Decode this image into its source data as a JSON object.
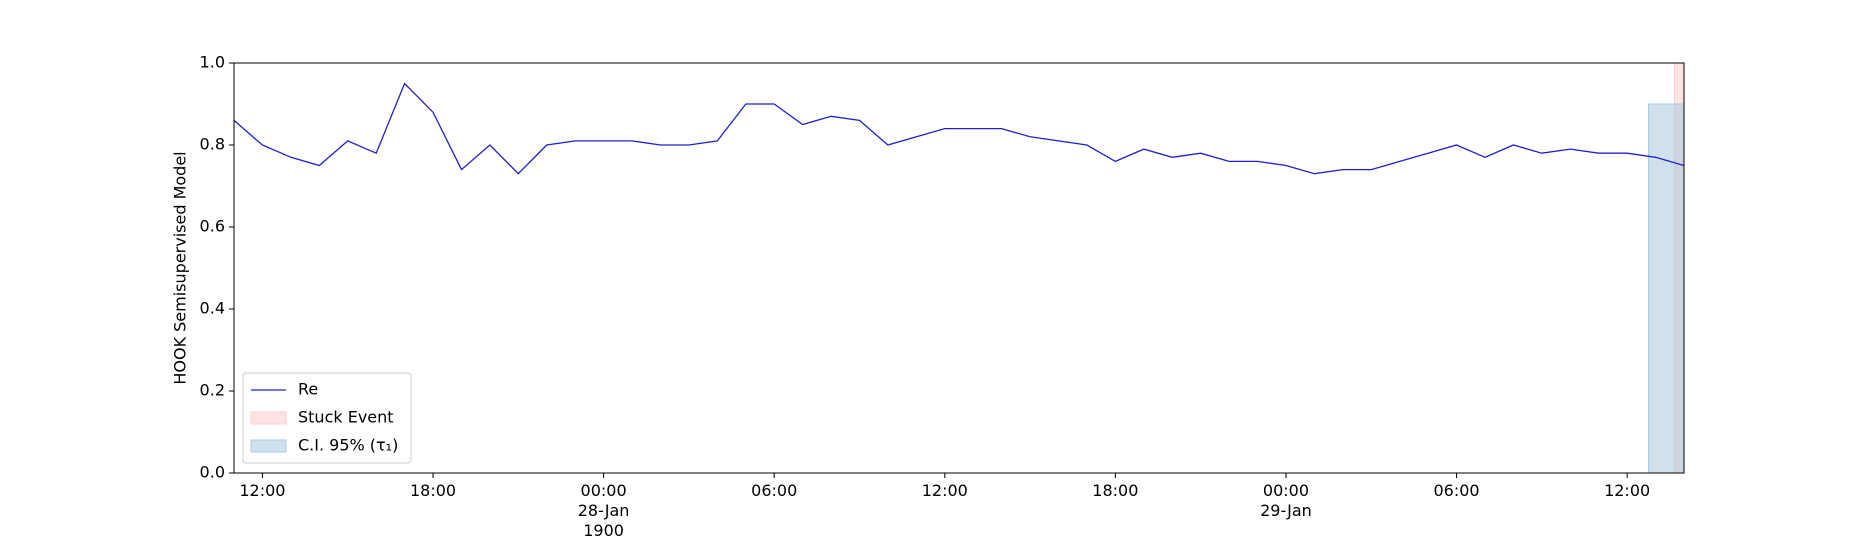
{
  "chart_data": {
    "type": "line",
    "ylabel": "HOOK Semisupervised Model",
    "x": [
      "1900-01-27T11:00",
      "1900-01-27T12:00",
      "1900-01-27T13:00",
      "1900-01-27T14:00",
      "1900-01-27T15:00",
      "1900-01-27T16:00",
      "1900-01-27T17:00",
      "1900-01-27T18:00",
      "1900-01-27T19:00",
      "1900-01-27T20:00",
      "1900-01-27T21:00",
      "1900-01-27T22:00",
      "1900-01-27T23:00",
      "1900-01-28T00:00",
      "1900-01-28T01:00",
      "1900-01-28T02:00",
      "1900-01-28T03:00",
      "1900-01-28T04:00",
      "1900-01-28T05:00",
      "1900-01-28T06:00",
      "1900-01-28T07:00",
      "1900-01-28T08:00",
      "1900-01-28T09:00",
      "1900-01-28T10:00",
      "1900-01-28T11:00",
      "1900-01-28T12:00",
      "1900-01-28T13:00",
      "1900-01-28T14:00",
      "1900-01-28T15:00",
      "1900-01-28T16:00",
      "1900-01-28T17:00",
      "1900-01-28T18:00",
      "1900-01-28T19:00",
      "1900-01-28T20:00",
      "1900-01-28T21:00",
      "1900-01-28T22:00",
      "1900-01-28T23:00",
      "1900-01-29T00:00",
      "1900-01-29T01:00",
      "1900-01-29T02:00",
      "1900-01-29T03:00",
      "1900-01-29T04:00",
      "1900-01-29T05:00",
      "1900-01-29T06:00",
      "1900-01-29T07:00",
      "1900-01-29T08:00",
      "1900-01-29T09:00",
      "1900-01-29T10:00",
      "1900-01-29T11:00",
      "1900-01-29T12:00",
      "1900-01-29T13:00",
      "1900-01-29T14:00"
    ],
    "series": [
      {
        "name": "Re",
        "color": "#2020c8",
        "values": [
          0.86,
          0.8,
          0.77,
          0.75,
          0.81,
          0.78,
          0.95,
          0.88,
          0.74,
          0.8,
          0.73,
          0.8,
          0.81,
          0.81,
          0.81,
          0.8,
          0.8,
          0.81,
          0.9,
          0.9,
          0.85,
          0.87,
          0.86,
          0.8,
          0.82,
          0.84,
          0.84,
          0.84,
          0.82,
          0.81,
          0.8,
          0.76,
          0.79,
          0.77,
          0.78,
          0.76,
          0.76,
          0.75,
          0.73,
          0.74,
          0.74,
          0.76,
          0.78,
          0.8,
          0.77,
          0.8,
          0.78,
          0.79,
          0.78,
          0.78,
          0.77,
          0.75
        ]
      }
    ],
    "spans": [
      {
        "name": "Stuck Event",
        "color": "#ffcccc",
        "start": "1900-01-29T13:40",
        "end": "1900-01-29T14:00"
      },
      {
        "name": "C.I. 95% (τ₁)",
        "color": "#a9c9e0",
        "start": "1900-01-29T12:45",
        "end": "1900-01-29T14:00",
        "ymax": 0.9
      }
    ],
    "xlim": [
      "1900-01-27T11:00",
      "1900-01-29T14:00"
    ],
    "xticks": [
      {
        "value": "1900-01-27T12:00",
        "label": "12:00"
      },
      {
        "value": "1900-01-27T18:00",
        "label": "18:00"
      },
      {
        "value": "1900-01-28T00:00",
        "label": "00:00\n28-Jan\n1900"
      },
      {
        "value": "1900-01-28T06:00",
        "label": "06:00"
      },
      {
        "value": "1900-01-28T12:00",
        "label": "12:00"
      },
      {
        "value": "1900-01-28T18:00",
        "label": "18:00"
      },
      {
        "value": "1900-01-29T00:00",
        "label": "00:00\n29-Jan"
      },
      {
        "value": "1900-01-29T06:00",
        "label": "06:00"
      },
      {
        "value": "1900-01-29T12:00",
        "label": "12:00"
      }
    ],
    "ylim": [
      0,
      1
    ],
    "yticks": [
      {
        "value": 0,
        "label": "0.0"
      },
      {
        "value": 0.2,
        "label": "0.2"
      },
      {
        "value": 0.4,
        "label": "0.4"
      },
      {
        "value": 0.6,
        "label": "0.6"
      },
      {
        "value": 0.8,
        "label": "0.8"
      },
      {
        "value": 1,
        "label": "1.0"
      }
    ],
    "legend": "lower left"
  }
}
